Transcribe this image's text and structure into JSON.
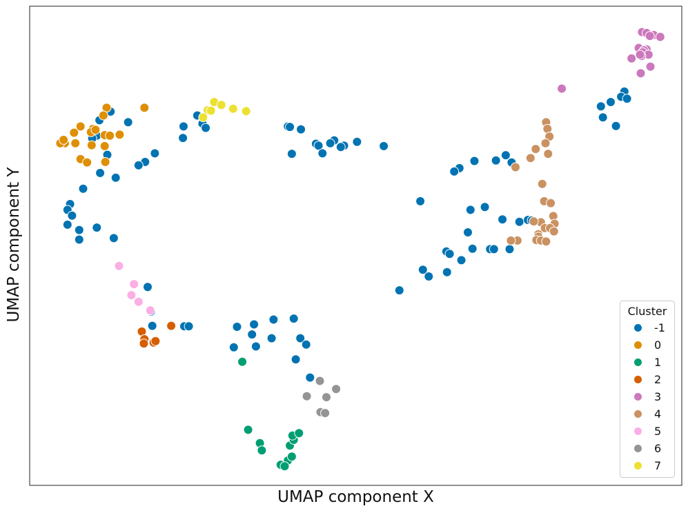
{
  "chart_data": {
    "type": "scatter",
    "title": "",
    "xlabel": "UMAP component X",
    "ylabel": "UMAP component Y",
    "xlim": [
      0,
      100
    ],
    "ylim": [
      0,
      100
    ],
    "ticks": "hidden",
    "grid": false,
    "legend": {
      "title": "Cluster",
      "placement": "bottom-right"
    },
    "series": [
      {
        "name": "-1",
        "color": "#0173b2",
        "points": [
          [
            10.7,
            76.2
          ],
          [
            12.4,
            78.0
          ],
          [
            15.1,
            75.8
          ],
          [
            10.3,
            73.0
          ],
          [
            9.6,
            72.4
          ],
          [
            11.9,
            69.0
          ],
          [
            19.2,
            69.3
          ],
          [
            17.7,
            67.5
          ],
          [
            16.7,
            66.8
          ],
          [
            13.2,
            64.2
          ],
          [
            10.8,
            65.2
          ],
          [
            8.2,
            61.9
          ],
          [
            6.2,
            58.7
          ],
          [
            5.8,
            57.5
          ],
          [
            6.5,
            56.3
          ],
          [
            5.8,
            54.4
          ],
          [
            7.6,
            53.3
          ],
          [
            10.3,
            53.8
          ],
          [
            7.6,
            51.3
          ],
          [
            12.9,
            51.6
          ],
          [
            23.5,
            72.5
          ],
          [
            25.7,
            77.2
          ],
          [
            23.6,
            74.9
          ],
          [
            26.5,
            75.5
          ],
          [
            27.0,
            74.6
          ],
          [
            39.6,
            74.9
          ],
          [
            39.9,
            74.8
          ],
          [
            41.6,
            74.3
          ],
          [
            43.9,
            71.3
          ],
          [
            46.7,
            72.0
          ],
          [
            44.3,
            70.9
          ],
          [
            44.9,
            69.3
          ],
          [
            46.1,
            71.4
          ],
          [
            48.2,
            70.9
          ],
          [
            47.7,
            70.6
          ],
          [
            40.2,
            69.2
          ],
          [
            50.2,
            71.7
          ],
          [
            54.3,
            70.8
          ],
          [
            65.9,
            66.2
          ],
          [
            68.2,
            67.7
          ],
          [
            71.5,
            67.8
          ],
          [
            73.9,
            67.4
          ],
          [
            73.0,
            68.9
          ],
          [
            65.1,
            65.5
          ],
          [
            59.9,
            59.3
          ],
          [
            67.6,
            57.5
          ],
          [
            69.8,
            58.1
          ],
          [
            72.5,
            55.5
          ],
          [
            75.1,
            55.0
          ],
          [
            76.4,
            55.4
          ],
          [
            77.0,
            55.3
          ],
          [
            67.2,
            52.8
          ],
          [
            63.9,
            48.8
          ],
          [
            64.4,
            48.3
          ],
          [
            66.2,
            47.0
          ],
          [
            67.9,
            49.4
          ],
          [
            70.6,
            49.3
          ],
          [
            71.2,
            49.3
          ],
          [
            73.6,
            49.3
          ],
          [
            60.3,
            45.0
          ],
          [
            61.2,
            43.6
          ],
          [
            64.0,
            44.5
          ],
          [
            56.7,
            40.7
          ],
          [
            87.6,
            79.1
          ],
          [
            89.1,
            80.0
          ],
          [
            91.2,
            82.2
          ],
          [
            90.7,
            81.1
          ],
          [
            91.6,
            80.7
          ],
          [
            87.9,
            76.8
          ],
          [
            89.9,
            75.0
          ],
          [
            18.1,
            41.4
          ],
          [
            18.6,
            36.3
          ],
          [
            18.8,
            33.3
          ],
          [
            23.7,
            33.2
          ],
          [
            24.4,
            33.2
          ],
          [
            31.8,
            33.1
          ],
          [
            34.4,
            33.6
          ],
          [
            37.4,
            34.6
          ],
          [
            40.5,
            34.8
          ],
          [
            34.1,
            31.5
          ],
          [
            37.1,
            30.7
          ],
          [
            31.3,
            28.8
          ],
          [
            41.5,
            30.7
          ],
          [
            42.4,
            29.4
          ],
          [
            34.7,
            29.0
          ],
          [
            40.8,
            26.3
          ],
          [
            43.0,
            22.5
          ]
        ]
      },
      {
        "name": "0",
        "color": "#de8f05",
        "points": [
          [
            11.8,
            78.8
          ],
          [
            11.3,
            77.2
          ],
          [
            7.8,
            74.9
          ],
          [
            6.8,
            73.6
          ],
          [
            9.7,
            74.4
          ],
          [
            9.4,
            73.7
          ],
          [
            10.1,
            74.2
          ],
          [
            11.5,
            73.1
          ],
          [
            12.3,
            73.0
          ],
          [
            5.4,
            71.4
          ],
          [
            4.7,
            71.4
          ],
          [
            5.2,
            72.1
          ],
          [
            7.0,
            71.4
          ],
          [
            9.5,
            71.0
          ],
          [
            13.8,
            73.2
          ],
          [
            7.8,
            68.1
          ],
          [
            8.8,
            67.4
          ],
          [
            11.5,
            70.8
          ],
          [
            11.6,
            67.5
          ],
          [
            17.6,
            78.8
          ]
        ]
      },
      {
        "name": "1",
        "color": "#029e73",
        "points": [
          [
            32.6,
            25.8
          ],
          [
            33.5,
            11.6
          ],
          [
            35.3,
            8.8
          ],
          [
            35.6,
            7.3
          ],
          [
            39.6,
            5.2
          ],
          [
            38.5,
            4.3
          ],
          [
            39.1,
            4.0
          ],
          [
            40.2,
            6.0
          ],
          [
            39.9,
            8.3
          ],
          [
            40.5,
            9.5
          ],
          [
            40.3,
            10.4
          ],
          [
            41.3,
            10.9
          ]
        ]
      },
      {
        "name": "2",
        "color": "#d55e00",
        "points": [
          [
            17.2,
            32.1
          ],
          [
            17.6,
            30.5
          ],
          [
            17.5,
            29.6
          ],
          [
            19.0,
            29.8
          ],
          [
            19.3,
            30.1
          ],
          [
            21.7,
            33.3
          ]
        ]
      },
      {
        "name": "3",
        "color": "#cc78bc",
        "points": [
          [
            93.9,
            94.6
          ],
          [
            94.6,
            94.4
          ],
          [
            95.7,
            94.0
          ],
          [
            96.7,
            93.6
          ],
          [
            95.1,
            93.8
          ],
          [
            93.4,
            91.3
          ],
          [
            94.6,
            91.0
          ],
          [
            94.2,
            90.8
          ],
          [
            94.0,
            90.4
          ],
          [
            94.9,
            89.9
          ],
          [
            93.8,
            89.6
          ],
          [
            93.6,
            89.9
          ],
          [
            92.3,
            89.1
          ],
          [
            95.2,
            87.4
          ],
          [
            93.7,
            86.0
          ],
          [
            81.6,
            82.8
          ]
        ]
      },
      {
        "name": "4",
        "color": "#ca9161",
        "points": [
          [
            79.2,
            75.8
          ],
          [
            79.4,
            74.4
          ],
          [
            79.7,
            72.8
          ],
          [
            79.1,
            71.4
          ],
          [
            77.6,
            70.2
          ],
          [
            76.8,
            68.3
          ],
          [
            79.5,
            69.2
          ],
          [
            74.5,
            66.4
          ],
          [
            78.6,
            62.9
          ],
          [
            78.9,
            59.3
          ],
          [
            79.9,
            58.9
          ],
          [
            80.3,
            56.2
          ],
          [
            80.5,
            54.6
          ],
          [
            78.4,
            54.9
          ],
          [
            77.3,
            55.1
          ],
          [
            79.0,
            53.7
          ],
          [
            79.8,
            53.7
          ],
          [
            80.4,
            53.0
          ],
          [
            78.0,
            52.4
          ],
          [
            78.0,
            51.9
          ],
          [
            77.7,
            51.2
          ],
          [
            78.4,
            51.1
          ],
          [
            79.2,
            50.9
          ],
          [
            74.8,
            51.1
          ],
          [
            73.7,
            51.1
          ],
          [
            73.8,
            51.1
          ]
        ]
      },
      {
        "name": "5",
        "color": "#fbafe4",
        "points": [
          [
            13.7,
            45.8
          ],
          [
            16.0,
            42.0
          ],
          [
            15.6,
            39.7
          ],
          [
            16.7,
            38.3
          ],
          [
            18.5,
            36.5
          ]
        ]
      },
      {
        "name": "6",
        "color": "#949494",
        "points": [
          [
            44.5,
            21.8
          ],
          [
            42.5,
            18.6
          ],
          [
            45.5,
            18.4
          ],
          [
            47.0,
            20.1
          ],
          [
            44.6,
            15.3
          ],
          [
            45.3,
            15.1
          ]
        ]
      },
      {
        "name": "7",
        "color": "#ece133",
        "points": [
          [
            28.3,
            80.0
          ],
          [
            29.4,
            79.4
          ],
          [
            31.2,
            78.6
          ],
          [
            33.2,
            78.1
          ],
          [
            27.3,
            78.3
          ],
          [
            27.8,
            78.2
          ],
          [
            26.6,
            76.8
          ]
        ]
      }
    ]
  }
}
